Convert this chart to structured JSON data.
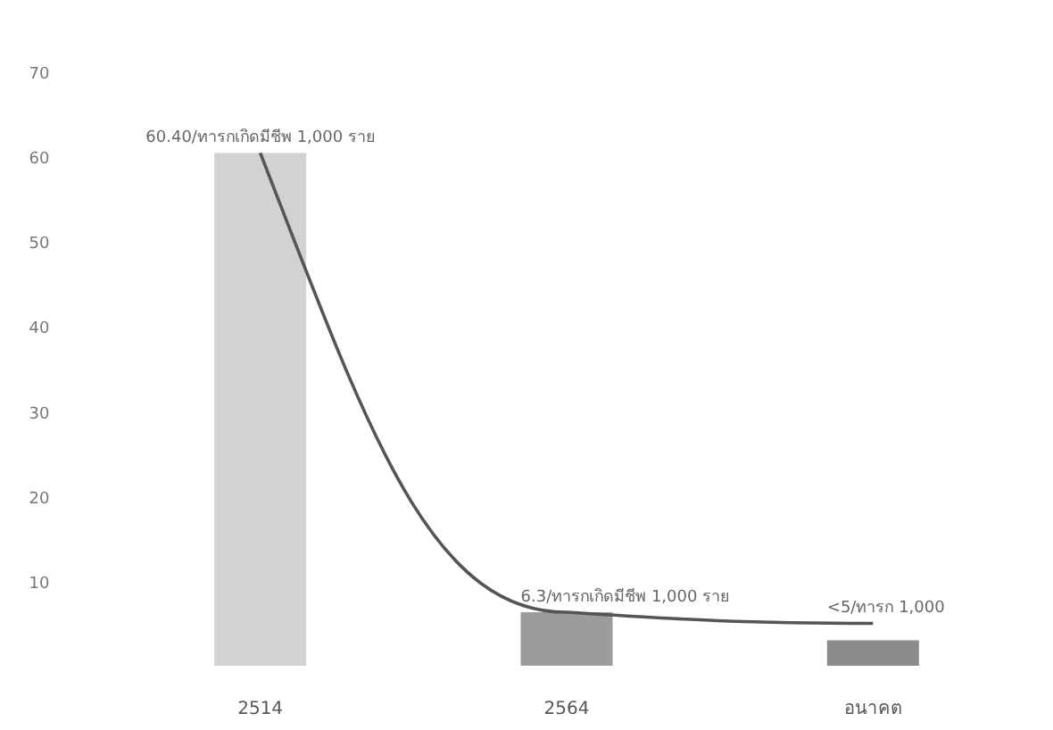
{
  "chart_data": {
    "type": "bar",
    "categories": [
      "2514",
      "2564",
      "อนาคต"
    ],
    "ylim": [
      0,
      70
    ],
    "yticks": [
      10,
      20,
      30,
      40,
      50,
      60,
      70
    ],
    "grid": false,
    "series": [
      {
        "colors": [
          "#d2d2d2",
          "#9c9c9c",
          "#8c8c8c"
        ],
        "values": [
          60.4,
          6.3,
          3
        ],
        "value_labels": [
          "60.40/ทารกเกิดมีชีพ 1,000 ราย",
          "6.3/ทารกเกิดมีชีพ 1,000 ราย",
          "<5/ทารก 1,000"
        ]
      },
      {
        "type": "line",
        "color": "#555555",
        "values": [
          60.4,
          6.3,
          5
        ]
      }
    ]
  }
}
